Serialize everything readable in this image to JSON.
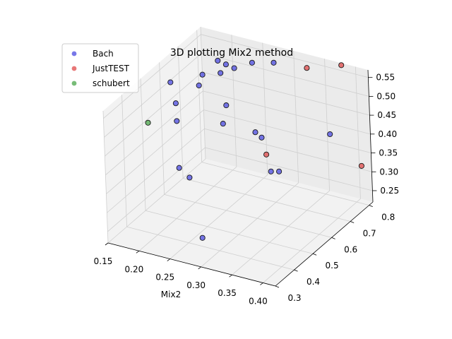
{
  "chart_data": {
    "type": "scatter",
    "title": "3D plotting Mix2 method",
    "xlabel": "Mix2",
    "ylabel": "",
    "zlabel": "",
    "x_ticks": [
      "0.15",
      "0.20",
      "0.25",
      "0.30",
      "0.35",
      "0.40"
    ],
    "y_ticks": [
      "0.3",
      "0.4",
      "0.5",
      "0.6",
      "0.7",
      "0.8"
    ],
    "z_ticks": [
      "0.25",
      "0.30",
      "0.35",
      "0.40",
      "0.45",
      "0.50",
      "0.55"
    ],
    "xlim": [
      0.15,
      0.42
    ],
    "ylim": [
      0.3,
      0.82
    ],
    "zlim": [
      0.22,
      0.57
    ],
    "grid": true,
    "legend_position": "top-left",
    "series": [
      {
        "name": "Bach",
        "color": "#4a4ae0",
        "points": [
          {
            "x": 0.17,
            "y": 0.59,
            "z": 0.53
          },
          {
            "x": 0.19,
            "y": 0.55,
            "z": 0.5
          },
          {
            "x": 0.2,
            "y": 0.52,
            "z": 0.47
          },
          {
            "x": 0.21,
            "y": 0.61,
            "z": 0.53
          },
          {
            "x": 0.21,
            "y": 0.63,
            "z": 0.55
          },
          {
            "x": 0.22,
            "y": 0.68,
            "z": 0.57
          },
          {
            "x": 0.23,
            "y": 0.66,
            "z": 0.55
          },
          {
            "x": 0.23,
            "y": 0.69,
            "z": 0.56
          },
          {
            "x": 0.24,
            "y": 0.7,
            "z": 0.55
          },
          {
            "x": 0.25,
            "y": 0.62,
            "z": 0.49
          },
          {
            "x": 0.25,
            "y": 0.6,
            "z": 0.45
          },
          {
            "x": 0.26,
            "y": 0.73,
            "z": 0.56
          },
          {
            "x": 0.27,
            "y": 0.81,
            "z": 0.53
          },
          {
            "x": 0.28,
            "y": 0.67,
            "z": 0.41
          },
          {
            "x": 0.29,
            "y": 0.67,
            "z": 0.4
          },
          {
            "x": 0.3,
            "y": 0.68,
            "z": 0.31
          },
          {
            "x": 0.31,
            "y": 0.69,
            "z": 0.31
          },
          {
            "x": 0.37,
            "y": 0.77,
            "z": 0.4
          },
          {
            "x": 0.22,
            "y": 0.46,
            "z": 0.38
          },
          {
            "x": 0.23,
            "y": 0.48,
            "z": 0.35
          },
          {
            "x": 0.26,
            "y": 0.44,
            "z": 0.22
          }
        ]
      },
      {
        "name": "JustTEST",
        "color": "#e04a4a",
        "points": [
          {
            "x": 0.33,
            "y": 0.79,
            "z": 0.55
          },
          {
            "x": 0.38,
            "y": 0.81,
            "z": 0.57
          },
          {
            "x": 0.41,
            "y": 0.8,
            "z": 0.32
          },
          {
            "x": 0.41,
            "y": 0.31,
            "z": 0.56
          }
        ]
      },
      {
        "name": "schubert",
        "color": "#4aa64a",
        "points": [
          {
            "x": 0.15,
            "y": 0.53,
            "z": 0.44
          }
        ]
      }
    ]
  }
}
